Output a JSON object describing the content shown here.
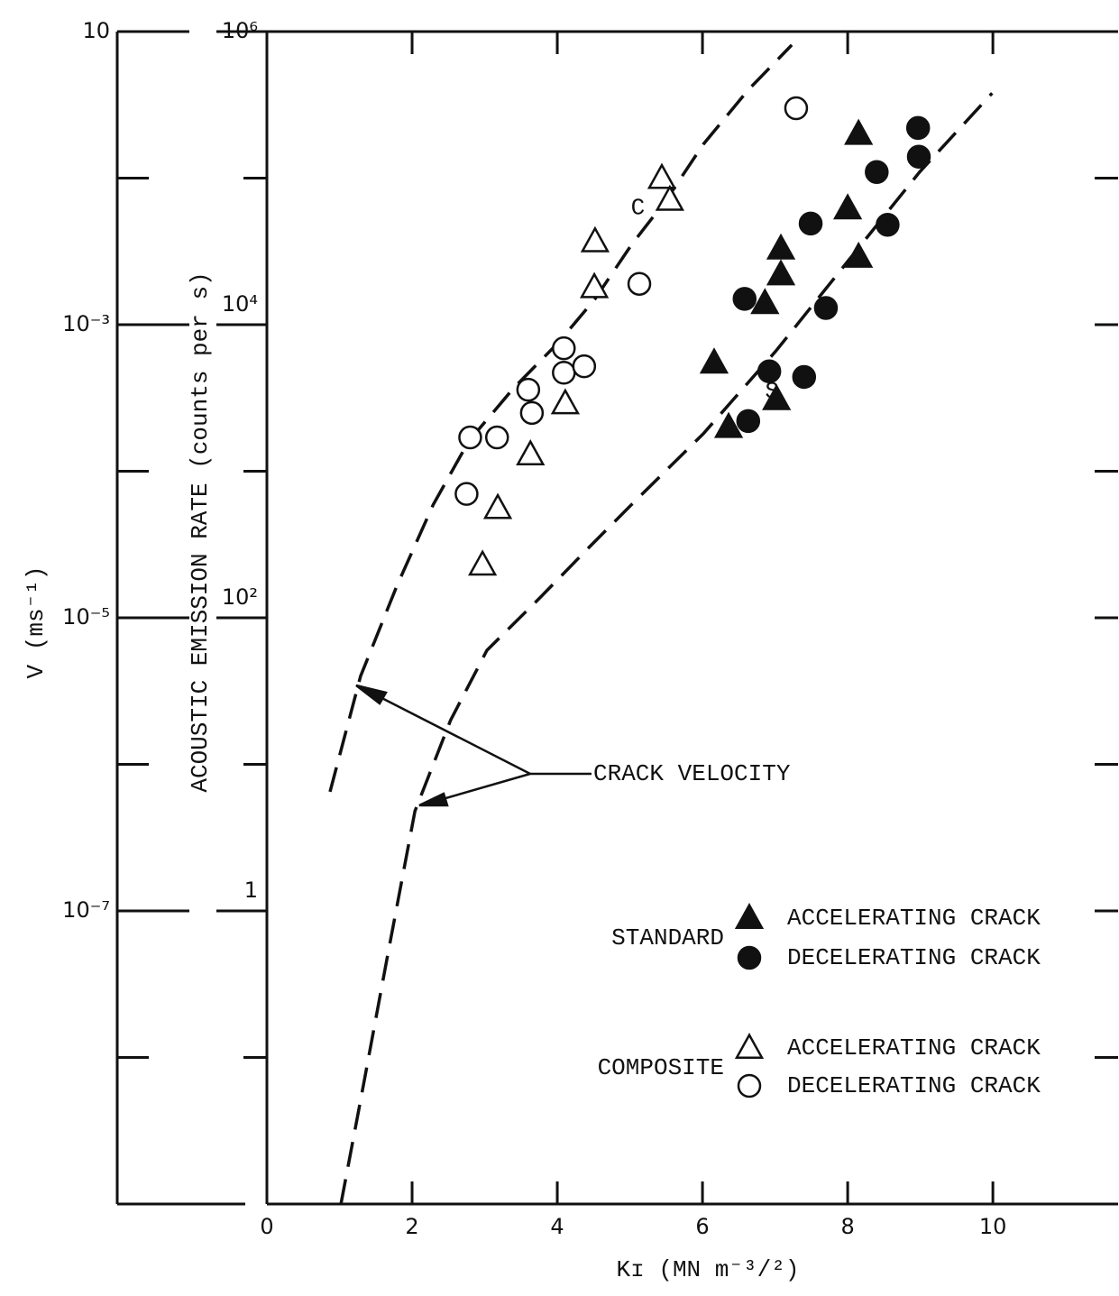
{
  "chart_data": {
    "type": "scatter",
    "ylabel": "ACOUSTIC EMISSION RATE (counts per s)",
    "y2label": "V (ms⁻¹)",
    "y2_top_label": "10",
    "xlabel": "Kɪ (MN m⁻³/²)",
    "xlim": [
      0,
      11.7
    ],
    "xticks": [
      0,
      2,
      4,
      6,
      8,
      10
    ],
    "ylog": true,
    "ylim": [
      0.01,
      1000000
    ],
    "yticks": [
      {
        "value": 1000000,
        "label": "10⁶"
      },
      {
        "value": 100000,
        "label": null
      },
      {
        "value": 10000,
        "label": "10⁴"
      },
      {
        "value": 1000,
        "label": null
      },
      {
        "value": 100,
        "label": "10²"
      },
      {
        "value": 10,
        "label": null
      },
      1,
      {
        "value": 0.1,
        "label": null
      }
    ],
    "y2log": true,
    "y2lim": [
      1e-09,
      0.1
    ],
    "y2ticks": [
      {
        "value": 0.01,
        "label": null
      },
      {
        "value": 0.001,
        "label": "10⁻³"
      },
      {
        "value": 0.0001,
        "label": null
      },
      {
        "value": 1e-05,
        "label": "10⁻⁵"
      },
      {
        "value": 1e-06,
        "label": null
      },
      {
        "value": 1e-07,
        "label": "10⁻⁷"
      },
      {
        "value": 1e-08,
        "label": null
      }
    ],
    "series": [
      {
        "name": "ACCELERATING CRACK",
        "group": "STANDARD",
        "marker": "triangle",
        "filled": true,
        "color": "#111111",
        "x": [
          8.15,
          8.0,
          7.08,
          8.15,
          7.08,
          6.86,
          6.16,
          7.02,
          6.36
        ],
        "values": [
          200000,
          62000,
          33000,
          29000,
          22000,
          14000,
          5500,
          3100,
          2000
        ]
      },
      {
        "name": "DECELERATING CRACK",
        "group": "STANDARD",
        "marker": "circle",
        "filled": true,
        "color": "#111111",
        "x": [
          8.97,
          8.98,
          8.4,
          7.49,
          8.55,
          6.58,
          7.7,
          6.92,
          7.4,
          6.63
        ],
        "values": [
          220000,
          140000,
          110000,
          49000,
          48000,
          15000,
          13000,
          4800,
          4400,
          2200
        ]
      },
      {
        "name": "ACCELERATING CRACK",
        "group": "COMPOSITE",
        "marker": "triangle",
        "filled": false,
        "color": "#111111",
        "x": [
          5.44,
          5.55,
          4.52,
          4.51,
          4.11,
          3.63,
          3.18,
          2.97
        ],
        "values": [
          100000,
          71000,
          37000,
          18000,
          2900,
          1300,
          560,
          230
        ]
      },
      {
        "name": "DECELERATING CRACK",
        "group": "COMPOSITE",
        "marker": "circle",
        "filled": false,
        "color": "#111111",
        "x": [
          7.29,
          5.13,
          4.09,
          4.09,
          4.37,
          3.6,
          3.65,
          2.8,
          3.17,
          2.75
        ],
        "values": [
          300000,
          19000,
          6900,
          4700,
          5200,
          3600,
          2500,
          1700,
          1700,
          700
        ]
      }
    ],
    "curves": [
      {
        "name": "C",
        "x": [
          0.87,
          1.29,
          1.79,
          2.29,
          2.78,
          3.4,
          4.02,
          4.52,
          5.02,
          5.51,
          6.01,
          6.63,
          7.23
        ],
        "values": [
          6.5,
          40,
          165,
          590,
          1600,
          3700,
          7600,
          15000,
          35000,
          72000,
          170000,
          400000,
          810000
        ]
      },
      {
        "name": "S",
        "x": [
          1.02,
          1.29,
          1.66,
          2.04,
          2.53,
          3.03,
          3.78,
          4.4,
          5.02,
          6.01,
          7.01,
          8.0,
          8.99,
          9.99
        ],
        "values": [
          0.01,
          0.051,
          0.49,
          4.8,
          20,
          60,
          140,
          290,
          590,
          1800,
          6600,
          27000,
          110000,
          380000
        ]
      }
    ],
    "annotation": "CRACK VELOCITY"
  }
}
